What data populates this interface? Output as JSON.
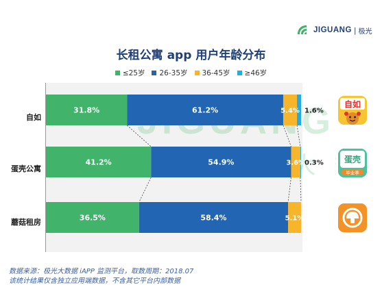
{
  "brand": {
    "name": "JIGUANG",
    "separator": "|",
    "name_cn": "极光"
  },
  "chart_data": {
    "type": "bar",
    "stacked": true,
    "orientation": "horizontal",
    "normalized": true,
    "title": "长租公寓 app 用户年龄分布",
    "categories": [
      "自如",
      "蛋壳公寓",
      "蘑菇租房"
    ],
    "series": [
      {
        "name": "≤25岁",
        "color": "#41b36b",
        "values": [
          31.8,
          41.2,
          36.5
        ],
        "labels": [
          "31.8%",
          "41.2%",
          "36.5%"
        ]
      },
      {
        "name": "26-35岁",
        "color": "#2265b2",
        "values": [
          61.2,
          54.9,
          58.4
        ],
        "labels": [
          "61.2%",
          "54.9%",
          "58.4%"
        ]
      },
      {
        "name": "36-45岁",
        "color": "#f7b52b",
        "values": [
          5.4,
          3.6,
          5.1
        ],
        "labels": [
          "5.4%",
          "3.6%",
          "5.1%"
        ]
      },
      {
        "name": "≥46岁",
        "color": "#25aae1",
        "values": [
          1.6,
          0.3,
          0.0
        ],
        "labels": [
          "1.6%",
          "0.3%",
          ""
        ]
      }
    ],
    "legend_position": "top",
    "grid": false,
    "xlim": [
      0,
      100
    ]
  },
  "watermark": {
    "text": "JIGUANG",
    "text_cn": "极 光 大 数"
  },
  "apps": [
    {
      "name": "zi-ru-app-icon",
      "text": "自如"
    },
    {
      "name": "dan-ke-app-icon",
      "text": "蛋壳",
      "subtext": "毕业季"
    },
    {
      "name": "mogu-app-icon"
    }
  ],
  "footer": {
    "line1": "数据来源：极光大数据 iAPP 监测平台，取数周期：2018.07",
    "line2": "该统计结果仅含独立应用端数据，不含其它平台内部数据"
  }
}
